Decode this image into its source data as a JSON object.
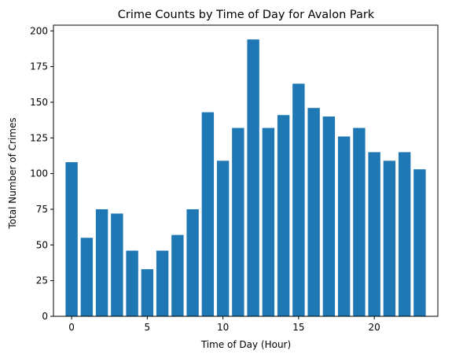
{
  "chart_data": {
    "type": "bar",
    "title": "Crime Counts by Time of Day for Avalon Park",
    "xlabel": "Time of Day (Hour)",
    "ylabel": "Total Number of Crimes",
    "x": [
      0,
      1,
      2,
      3,
      4,
      5,
      6,
      7,
      8,
      9,
      10,
      11,
      12,
      13,
      14,
      15,
      16,
      17,
      18,
      19,
      20,
      21,
      22,
      23
    ],
    "values": [
      108,
      55,
      75,
      72,
      46,
      33,
      46,
      57,
      75,
      143,
      109,
      132,
      194,
      132,
      141,
      163,
      146,
      140,
      126,
      132,
      115,
      109,
      115,
      103
    ],
    "xlim": [
      -1.2,
      24.2
    ],
    "ylim": [
      0,
      204
    ],
    "xticks": [
      0,
      5,
      10,
      15,
      20
    ],
    "yticks": [
      0,
      25,
      50,
      75,
      100,
      125,
      150,
      175,
      200
    ],
    "bar_color": "#1f77b4",
    "grid": false
  }
}
